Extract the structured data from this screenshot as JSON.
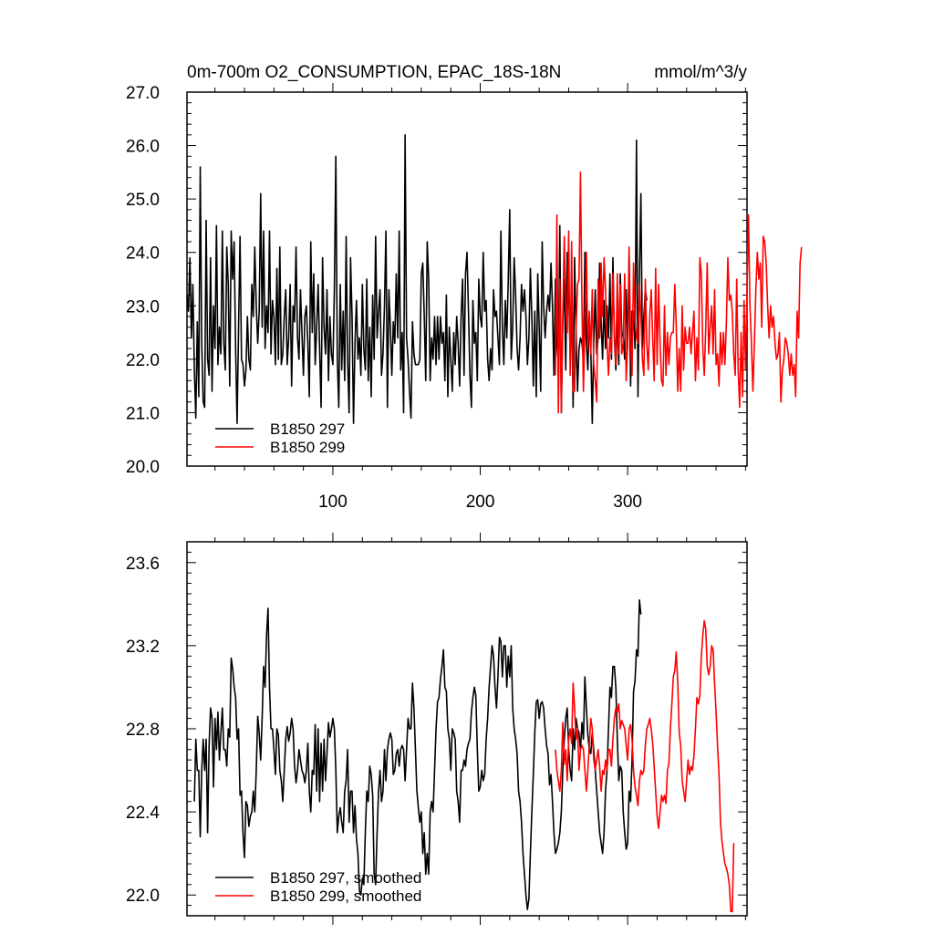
{
  "chart_data": [
    {
      "type": "line",
      "title_left": "0m-700m O2_CONSUMPTION, EPAC_18S-18N",
      "title_right": "mmol/m^3/y",
      "xlim": [
        1,
        381
      ],
      "ylim": [
        20.0,
        27.0
      ],
      "x_ticks": [
        100,
        200,
        300
      ],
      "x_tick_labels": [
        "100",
        "200",
        "300"
      ],
      "y_ticks": [
        20.0,
        21.0,
        22.0,
        23.0,
        24.0,
        25.0,
        26.0,
        27.0
      ],
      "y_tick_labels": [
        "20.0",
        "21.0",
        "22.0",
        "23.0",
        "24.0",
        "25.0",
        "26.0",
        "27.0"
      ],
      "legend_position": "bottom-left",
      "series": [
        {
          "name": "B1850 297",
          "color": "#000000",
          "x_start": 1,
          "values": [
            23.2,
            22.9,
            23.9,
            22.4,
            23.4,
            21.8,
            20.9,
            22.7,
            21.3,
            25.6,
            22.3,
            21.2,
            21.1,
            24.6,
            22.0,
            21.7,
            23.9,
            21.4,
            23.0,
            22.2,
            24.5,
            21.9,
            22.6,
            22.1,
            24.4,
            22.3,
            21.8,
            24.1,
            23.4,
            21.5,
            24.4,
            23.5,
            24.2,
            22.2,
            20.8,
            22.6,
            24.3,
            22.0,
            21.9,
            21.5,
            21.8,
            22.8,
            22.0,
            21.8,
            23.4,
            22.8,
            24.1,
            23.0,
            22.3,
            22.9,
            25.1,
            22.6,
            24.4,
            22.2,
            23.0,
            22.5,
            24.4,
            22.1,
            23.1,
            22.8,
            21.9,
            23.7,
            22.0,
            24.1,
            21.9,
            22.1,
            22.8,
            23.3,
            21.9,
            22.4,
            23.4,
            21.5,
            23.0,
            22.7,
            24.1,
            22.4,
            22.0,
            23.3,
            22.5,
            21.7,
            22.8,
            23.0,
            22.3,
            21.3,
            24.2,
            22.5,
            23.6,
            21.9,
            22.6,
            23.4,
            22.2,
            21.1,
            23.9,
            22.6,
            22.1,
            23.3,
            21.6,
            22.8,
            22.1,
            21.9,
            23.3,
            25.8,
            22.0,
            21.1,
            23.4,
            21.8,
            22.9,
            21.6,
            24.3,
            22.0,
            21.0,
            23.9,
            22.8,
            20.8,
            22.3,
            23.1,
            22.0,
            22.4,
            21.7,
            23.4,
            22.2,
            21.8,
            23.5,
            21.6,
            22.6,
            21.3,
            23.2,
            22.0,
            24.3,
            22.4,
            22.9,
            23.3,
            21.7,
            22.1,
            23.0,
            24.4,
            21.1,
            23.3,
            22.6,
            21.7,
            22.7,
            22.3,
            23.6,
            22.4,
            24.4,
            21.8,
            22.5,
            21.0,
            26.2,
            22.4,
            22.0,
            21.4,
            20.9,
            22.7,
            22.1,
            21.9,
            21.9,
            21.9,
            22.0,
            23.6,
            23.8,
            22.8,
            21.6,
            24.2,
            23.5,
            21.6,
            22.4,
            22.0,
            22.8,
            21.9,
            22.8,
            22.0,
            22.8,
            22.3,
            22.5,
            21.6,
            23.2,
            21.3,
            22.6,
            22.0,
            21.4,
            22.5,
            21.9,
            22.8,
            22.3,
            21.5,
            22.8,
            23.5,
            21.7,
            23.6,
            24.0,
            22.9,
            21.7,
            21.1,
            23.1,
            22.3,
            22.5,
            21.6,
            23.5,
            22.8,
            22.6,
            24.0,
            22.9,
            23.1,
            22.0,
            21.6,
            22.2,
            21.8,
            23.3,
            22.8,
            22.9,
            22.4,
            21.9,
            24.4,
            22.6,
            21.9,
            23.1,
            22.4,
            23.5,
            24.8,
            22.0,
            22.6,
            23.9,
            23.2,
            22.2,
            21.8,
            22.4,
            23.4,
            22.9,
            23.3,
            22.8,
            21.9,
            22.4,
            23.7,
            22.8,
            21.5,
            22.9,
            21.3,
            23.6,
            22.6,
            21.4,
            24.2,
            23.0,
            22.4,
            22.9,
            23.2,
            22.9,
            23.8,
            23.0,
            21.7,
            23.5,
            22.3,
            21.9,
            24.5,
            21.0,
            22.7,
            23.5,
            21.8,
            24.0,
            23.3,
            22.1,
            23.0,
            21.1,
            23.9,
            22.5,
            21.4,
            22.2,
            22.4,
            22.3,
            22.0,
            24.0,
            22.3,
            21.8,
            22.7,
            22.2,
            20.8,
            22.3,
            23.3,
            22.1,
            22.4,
            23.8,
            22.7,
            22.0,
            23.1,
            22.2,
            23.0,
            22.4,
            23.6,
            22.0,
            23.9,
            22.4,
            21.8,
            22.8,
            21.9,
            23.6,
            22.5,
            22.4,
            22.0,
            23.3,
            22.2,
            23.9,
            21.5,
            22.9,
            22.9,
            22.2,
            26.1,
            21.3,
            23.6,
            25.1,
            22.2,
            22.8,
            23.3,
            23.1
          ]
        },
        {
          "name": "B1850 299",
          "color": "#ff0000",
          "x_start": 251,
          "values": [
            21.7,
            24.7,
            21.0,
            23.5,
            21.0,
            22.8,
            24.3,
            23.0,
            22.5,
            24.4,
            21.7,
            24.2,
            21.4,
            21.4,
            22.6,
            23.4,
            23.5,
            25.5,
            23.0,
            21.4,
            22.6,
            24.0,
            22.2,
            22.9,
            22.1,
            23.3,
            21.9,
            21.6,
            21.2,
            23.5,
            22.4,
            23.8,
            22.8,
            23.9,
            23.3,
            22.3,
            21.7,
            22.4,
            22.1,
            23.6,
            22.5,
            21.9,
            23.6,
            22.1,
            23.4,
            22.1,
            22.3,
            23.6,
            21.6,
            22.3,
            24.1,
            22.4,
            21.7,
            23.8,
            22.7,
            22.4,
            22.3,
            23.4,
            22.8,
            22.0,
            21.7,
            23.5,
            22.3,
            21.8,
            22.8,
            23.3,
            22.4,
            21.6,
            23.7,
            21.9,
            23.4,
            22.3,
            21.6,
            21.5,
            23.0,
            21.7,
            22.5,
            21.9,
            22.4,
            22.5,
            22.5,
            23.4,
            22.6,
            21.4,
            22.2,
            21.4,
            23.0,
            21.8,
            22.6,
            22.3,
            22.3,
            22.6,
            22.1,
            22.5,
            22.9,
            21.6,
            22.4,
            21.8,
            23.9,
            23.6,
            22.2,
            21.7,
            22.6,
            23.8,
            22.1,
            22.6,
            23.0,
            22.1,
            23.3,
            21.9,
            22.1,
            21.5,
            22.5,
            21.9,
            22.5,
            21.9,
            22.7,
            23.9,
            23.1,
            23.2,
            22.9,
            22.1,
            21.7,
            23.5,
            21.8,
            21.1,
            22.5,
            21.3,
            23.1,
            21.8,
            23.3,
            24.7,
            23.0,
            22.3,
            21.4,
            22.3,
            23.3,
            24.0,
            23.5,
            23.8,
            22.6,
            24.3,
            24.2,
            23.8,
            23.0,
            22.4,
            23.0,
            22.6,
            22.8,
            22.3,
            22.0,
            22.1,
            22.5,
            21.2,
            21.8,
            22.0,
            22.4,
            22.3,
            22.1,
            21.7,
            22.1,
            21.7,
            21.9,
            21.3,
            22.9,
            22.4,
            23.8,
            24.1
          ]
        }
      ]
    },
    {
      "type": "line",
      "xlim": [
        1,
        381
      ],
      "ylim": [
        21.9,
        23.7
      ],
      "x_ticks": [
        100,
        200,
        300
      ],
      "y_ticks": [
        22.0,
        22.4,
        22.8,
        23.2,
        23.6
      ],
      "y_tick_labels": [
        "22.0",
        "22.4",
        "22.8",
        "23.2",
        "23.6"
      ],
      "legend_position": "bottom-left",
      "series": [
        {
          "name": "B1850 297, smoothed",
          "color": "#000000",
          "x_start": 6,
          "values": [
            22.45,
            22.75,
            22.6,
            22.6,
            22.28,
            22.6,
            22.75,
            22.6,
            22.75,
            22.3,
            22.72,
            22.9,
            22.85,
            22.52,
            22.85,
            22.7,
            22.88,
            22.65,
            22.78,
            22.9,
            22.7,
            22.7,
            22.62,
            22.8,
            22.76,
            23.14,
            23.09,
            23.0,
            22.95,
            22.75,
            22.8,
            22.48,
            22.5,
            22.3,
            22.18,
            22.45,
            22.43,
            22.33,
            22.38,
            22.4,
            22.5,
            22.4,
            22.6,
            22.86,
            22.78,
            22.65,
            22.85,
            23.1,
            23.0,
            23.25,
            23.38,
            23.0,
            22.8,
            22.8,
            22.7,
            22.58,
            22.8,
            22.77,
            22.6,
            22.55,
            22.45,
            22.6,
            22.75,
            22.81,
            22.74,
            22.78,
            22.85,
            22.8,
            22.62,
            22.54,
            22.6,
            22.7,
            22.65,
            22.6,
            22.58,
            22.54,
            22.6,
            22.73,
            22.5,
            22.4,
            22.6,
            22.58,
            22.82,
            22.5,
            22.8,
            22.45,
            22.73,
            22.5,
            22.75,
            22.55,
            22.68,
            22.83,
            22.76,
            22.8,
            22.85,
            22.8,
            22.6,
            22.3,
            22.38,
            22.42,
            22.35,
            22.3,
            22.5,
            22.55,
            22.7,
            22.35,
            22.5,
            22.5,
            22.3,
            22.43,
            22.27,
            22.2,
            22.02,
            22.0,
            22.08,
            22.05,
            22.3,
            22.5,
            22.45,
            22.62,
            22.58,
            22.48,
            22.1,
            22.05,
            22.3,
            22.5,
            22.6,
            22.45,
            22.5,
            22.7,
            22.55,
            22.7,
            22.75,
            22.78,
            22.75,
            22.58,
            22.6,
            22.68,
            22.7,
            22.62,
            22.7,
            22.72,
            22.7,
            22.55,
            22.7,
            22.85,
            22.8,
            22.8,
            23.02,
            22.9,
            22.7,
            22.5,
            22.42,
            22.35,
            22.4,
            22.2,
            22.3,
            22.1,
            22.2,
            22.1,
            22.4,
            22.45,
            22.4,
            22.6,
            22.8,
            22.93,
            22.95,
            23.04,
            23.1,
            23.18,
            23.0,
            22.98,
            22.8,
            22.75,
            22.6,
            22.8,
            22.78,
            22.75,
            22.5,
            22.45,
            22.35,
            22.6,
            22.6,
            22.65,
            22.62,
            22.7,
            22.73,
            22.75,
            22.88,
            22.95,
            23.0,
            22.96,
            22.7,
            22.5,
            22.52,
            22.6,
            22.55,
            22.58,
            22.75,
            22.85,
            23.0,
            23.1,
            23.2,
            23.15,
            23.0,
            22.9,
            23.05,
            23.24,
            23.22,
            23.05,
            23.2,
            23.2,
            23.0,
            23.15,
            23.05,
            23.2,
            22.9,
            22.8,
            22.75,
            22.68,
            22.5,
            22.45,
            22.35,
            22.2,
            22.1,
            22.0,
            21.93,
            21.98,
            22.2,
            22.4,
            22.58,
            22.78,
            22.93,
            22.94,
            22.85,
            22.92,
            22.93,
            22.9,
            22.8,
            22.72,
            22.68,
            22.53,
            22.58,
            22.45,
            22.3,
            22.2,
            22.22,
            22.25,
            22.3,
            22.4,
            22.6,
            22.75,
            22.85,
            22.9,
            22.7,
            22.6,
            22.55,
            22.8,
            22.7,
            22.85,
            22.8,
            22.78,
            22.7,
            22.83,
            22.75,
            23.05,
            22.9,
            22.77,
            22.7,
            22.68,
            22.78,
            22.7,
            22.6,
            22.5,
            22.4,
            22.3,
            22.25,
            22.2,
            22.3,
            22.5,
            22.6,
            22.8,
            23.0,
            22.95,
            23.1,
            23.1,
            23.0,
            22.75,
            22.55,
            22.62,
            22.6,
            22.4,
            22.3,
            22.22,
            22.25,
            22.5,
            22.45,
            22.65,
            22.98,
            23.03,
            23.18,
            23.15,
            23.42,
            23.35
          ]
        },
        {
          "name": "B1850 299, smoothed",
          "color": "#ff0000",
          "x_start": 251,
          "values": [
            22.7,
            22.6,
            22.55,
            22.5,
            22.6,
            22.83,
            22.63,
            22.7,
            22.55,
            22.75,
            22.8,
            22.73,
            23.02,
            22.9,
            22.75,
            22.8,
            22.6,
            22.7,
            22.72,
            22.7,
            22.6,
            22.5,
            22.6,
            22.72,
            22.85,
            22.8,
            22.65,
            22.6,
            22.65,
            22.7,
            22.62,
            22.5,
            22.6,
            22.58,
            22.65,
            22.6,
            22.7,
            22.7,
            22.62,
            22.75,
            22.85,
            22.9,
            22.88,
            22.92,
            22.8,
            22.84,
            22.82,
            22.8,
            22.72,
            22.65,
            22.8,
            22.82,
            22.75,
            22.6,
            22.52,
            22.48,
            22.43,
            22.55,
            22.6,
            22.58,
            22.6,
            22.72,
            22.8,
            22.82,
            22.85,
            22.8,
            22.73,
            22.62,
            22.5,
            22.38,
            22.32,
            22.4,
            22.48,
            22.45,
            22.48,
            22.44,
            22.6,
            22.63,
            22.8,
            22.92,
            23.05,
            23.08,
            23.17,
            23.02,
            22.78,
            22.72,
            22.55,
            22.5,
            22.45,
            22.55,
            22.65,
            22.58,
            22.62,
            22.6,
            22.67,
            22.8,
            22.95,
            22.92,
            22.96,
            23.15,
            23.25,
            23.32,
            23.28,
            23.1,
            23.06,
            23.1,
            23.2,
            23.18,
            23.02,
            22.88,
            22.72,
            22.58,
            22.35,
            22.26,
            22.2,
            22.15,
            22.13,
            22.1,
            22.05,
            21.92,
            21.92,
            22.25
          ]
        }
      ]
    }
  ]
}
